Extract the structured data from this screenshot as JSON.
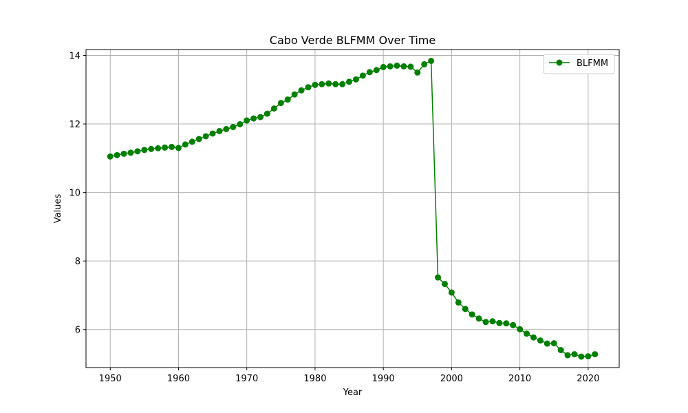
{
  "chart_data": {
    "type": "line",
    "title": "Cabo Verde BLFMM Over Time",
    "xlabel": "Year",
    "ylabel": "Values",
    "xlim": [
      1946.45,
      2024.55
    ],
    "ylim": [
      4.89,
      14.17
    ],
    "xticks": [
      1950,
      1960,
      1970,
      1980,
      1990,
      2000,
      2010,
      2020
    ],
    "yticks": [
      6,
      8,
      10,
      12,
      14
    ],
    "grid": true,
    "legend_position": "top-right",
    "series": [
      {
        "name": "BLFMM",
        "color": "#008000",
        "marker": "circle",
        "x": [
          1950,
          1951,
          1952,
          1953,
          1954,
          1955,
          1956,
          1957,
          1958,
          1959,
          1960,
          1961,
          1962,
          1963,
          1964,
          1965,
          1966,
          1967,
          1968,
          1969,
          1970,
          1971,
          1972,
          1973,
          1974,
          1975,
          1976,
          1977,
          1978,
          1979,
          1980,
          1981,
          1982,
          1983,
          1984,
          1985,
          1986,
          1987,
          1988,
          1989,
          1990,
          1991,
          1992,
          1993,
          1994,
          1995,
          1996,
          1997,
          1998,
          1999,
          2000,
          2001,
          2002,
          2003,
          2004,
          2005,
          2006,
          2007,
          2008,
          2009,
          2010,
          2011,
          2012,
          2013,
          2014,
          2015,
          2016,
          2017,
          2018,
          2019,
          2020,
          2021
        ],
        "values": [
          11.05,
          11.09,
          11.13,
          11.16,
          11.2,
          11.24,
          11.27,
          11.29,
          11.31,
          11.33,
          11.3,
          11.4,
          11.48,
          11.56,
          11.64,
          11.72,
          11.79,
          11.85,
          11.91,
          11.99,
          12.1,
          12.16,
          12.2,
          12.3,
          12.45,
          12.61,
          12.71,
          12.86,
          12.98,
          13.07,
          13.14,
          13.16,
          13.18,
          13.16,
          13.16,
          13.23,
          13.3,
          13.41,
          13.51,
          13.57,
          13.66,
          13.68,
          13.7,
          13.68,
          13.67,
          13.5,
          13.74,
          13.84,
          7.52,
          7.33,
          7.08,
          6.79,
          6.6,
          6.44,
          6.32,
          6.22,
          6.24,
          6.19,
          6.18,
          6.13,
          6.01,
          5.88,
          5.77,
          5.68,
          5.59,
          5.6,
          5.4,
          5.25,
          5.28,
          5.21,
          5.22,
          5.28
        ]
      }
    ]
  }
}
